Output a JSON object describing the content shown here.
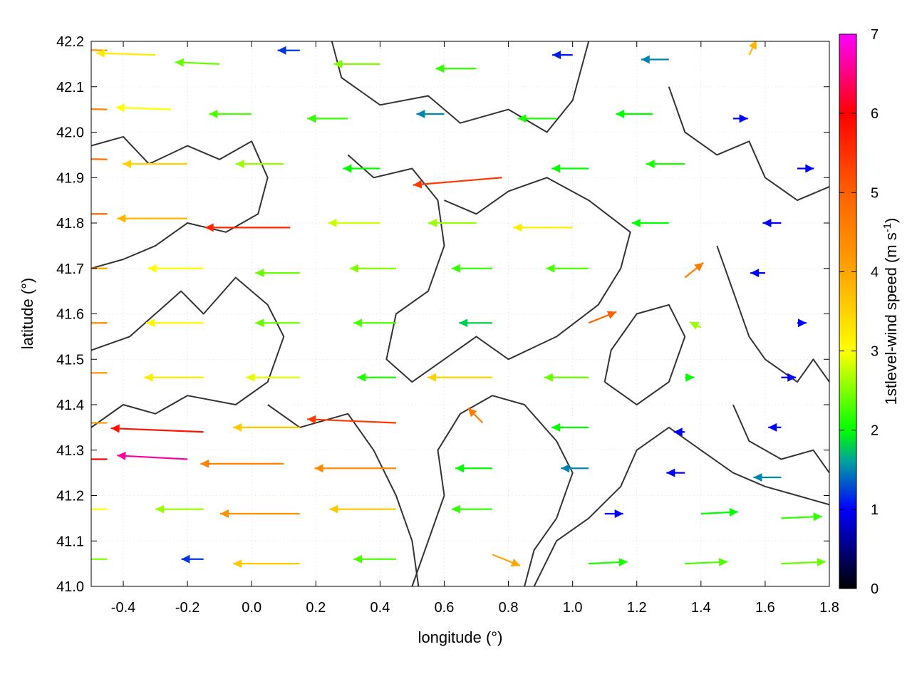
{
  "chart_data": {
    "type": "vector-field",
    "xlabel": "longitude (°)",
    "ylabel": "latitude (°)",
    "xlim": [
      -0.5,
      1.8
    ],
    "ylim": [
      41.0,
      42.2
    ],
    "xticks": [
      -0.4,
      -0.2,
      0.0,
      0.2,
      0.4,
      0.6,
      0.8,
      1.0,
      1.2,
      1.4,
      1.6,
      1.8
    ],
    "xtick_labels": [
      "-0.4",
      "-0.2",
      "0.0",
      "0.2",
      "0.4",
      "0.6",
      "0.8",
      "1.0",
      "1.2",
      "1.4",
      "1.6",
      "1.8"
    ],
    "yticks": [
      41.0,
      41.1,
      41.2,
      41.3,
      41.4,
      41.5,
      41.6,
      41.7,
      41.8,
      41.9,
      42.0,
      42.1,
      42.2
    ],
    "ytick_labels": [
      "41.0",
      "41.1",
      "41.2",
      "41.3",
      "41.4",
      "41.5",
      "41.6",
      "41.7",
      "41.8",
      "41.9",
      "42.0",
      "42.1",
      "42.2"
    ],
    "grid": true,
    "colorbar": {
      "label": "1stlevel-wind speed (m s",
      "label_superscript": "-1",
      "label_suffix": ")",
      "range": [
        0,
        7
      ],
      "ticks": [
        0,
        1,
        2,
        3,
        4,
        5,
        6,
        7
      ],
      "tick_labels": [
        "0",
        "1",
        "2",
        "3",
        "4",
        "5",
        "6",
        "7"
      ],
      "colors": [
        {
          "value": 0,
          "color": "#000000"
        },
        {
          "value": 1,
          "color": "#0000ff"
        },
        {
          "value": 1.6,
          "color": "#00a0a0"
        },
        {
          "value": 2,
          "color": "#00ff00"
        },
        {
          "value": 3,
          "color": "#ffff00"
        },
        {
          "value": 4,
          "color": "#ffa500"
        },
        {
          "value": 5,
          "color": "#ff6000"
        },
        {
          "value": 6,
          "color": "#ff0000"
        },
        {
          "value": 7,
          "color": "#ff00ff"
        }
      ]
    },
    "vectors": [
      {
        "lon": -0.45,
        "lat": 42.18,
        "u": -4.2,
        "v": 0.1,
        "speed": 4.2
      },
      {
        "lon": -0.3,
        "lat": 42.17,
        "u": -3.2,
        "v": 0.1,
        "speed": 3.2
      },
      {
        "lon": -0.1,
        "lat": 42.15,
        "u": -2.4,
        "v": 0.1,
        "speed": 2.4
      },
      {
        "lon": 0.15,
        "lat": 42.18,
        "u": -1.2,
        "v": 0.0,
        "speed": 1.2
      },
      {
        "lon": 0.4,
        "lat": 42.15,
        "u": -2.5,
        "v": 0.0,
        "speed": 2.5
      },
      {
        "lon": 0.7,
        "lat": 42.14,
        "u": -2.2,
        "v": 0.0,
        "speed": 2.2
      },
      {
        "lon": 1.0,
        "lat": 42.17,
        "u": -1.1,
        "v": 0.0,
        "speed": 1.1
      },
      {
        "lon": 1.3,
        "lat": 42.16,
        "u": -1.5,
        "v": 0.0,
        "speed": 1.5
      },
      {
        "lon": 1.55,
        "lat": 42.17,
        "u": 0.4,
        "v": 0.8,
        "speed": 3.8
      },
      {
        "lon": -0.45,
        "lat": 42.05,
        "u": -4.5,
        "v": 0.1,
        "speed": 4.5
      },
      {
        "lon": -0.25,
        "lat": 42.05,
        "u": -3.0,
        "v": 0.1,
        "speed": 3.0
      },
      {
        "lon": 0.0,
        "lat": 42.04,
        "u": -2.3,
        "v": 0.0,
        "speed": 2.3
      },
      {
        "lon": 0.3,
        "lat": 42.03,
        "u": -2.2,
        "v": 0.0,
        "speed": 2.2
      },
      {
        "lon": 0.6,
        "lat": 42.04,
        "u": -1.5,
        "v": 0.0,
        "speed": 1.5
      },
      {
        "lon": 0.95,
        "lat": 42.03,
        "u": -2.1,
        "v": 0.0,
        "speed": 2.1
      },
      {
        "lon": 1.25,
        "lat": 42.04,
        "u": -2.0,
        "v": 0.0,
        "speed": 2.0
      },
      {
        "lon": 1.5,
        "lat": 42.03,
        "u": 0.8,
        "v": 0.0,
        "speed": 1.0
      },
      {
        "lon": -0.45,
        "lat": 41.94,
        "u": -4.8,
        "v": 0.1,
        "speed": 4.8
      },
      {
        "lon": -0.2,
        "lat": 41.93,
        "u": -3.5,
        "v": 0.0,
        "speed": 3.5
      },
      {
        "lon": 0.1,
        "lat": 41.93,
        "u": -2.6,
        "v": 0.0,
        "speed": 2.6
      },
      {
        "lon": 0.4,
        "lat": 41.92,
        "u": -2.0,
        "v": 0.0,
        "speed": 2.0
      },
      {
        "lon": 0.78,
        "lat": 41.9,
        "u": -4.8,
        "v": -0.4,
        "speed": 5.4
      },
      {
        "lon": 1.05,
        "lat": 41.92,
        "u": -2.0,
        "v": 0.0,
        "speed": 2.0
      },
      {
        "lon": 1.35,
        "lat": 41.93,
        "u": -2.1,
        "v": 0.0,
        "speed": 2.1
      },
      {
        "lon": 1.7,
        "lat": 41.92,
        "u": 0.9,
        "v": 0.0,
        "speed": 1.0
      },
      {
        "lon": -0.45,
        "lat": 41.82,
        "u": -4.9,
        "v": 0.0,
        "speed": 4.9
      },
      {
        "lon": -0.2,
        "lat": 41.81,
        "u": -3.8,
        "v": 0.0,
        "speed": 3.8
      },
      {
        "lon": 0.12,
        "lat": 41.79,
        "u": -4.6,
        "v": 0.0,
        "speed": 5.6
      },
      {
        "lon": 0.4,
        "lat": 41.8,
        "u": -2.8,
        "v": 0.0,
        "speed": 2.8
      },
      {
        "lon": 0.7,
        "lat": 41.8,
        "u": -2.6,
        "v": 0.0,
        "speed": 2.6
      },
      {
        "lon": 1.0,
        "lat": 41.79,
        "u": -3.2,
        "v": 0.0,
        "speed": 3.2
      },
      {
        "lon": 1.3,
        "lat": 41.8,
        "u": -2.0,
        "v": 0.0,
        "speed": 2.0
      },
      {
        "lon": 1.65,
        "lat": 41.8,
        "u": -1.0,
        "v": 0.0,
        "speed": 1.0
      },
      {
        "lon": -0.45,
        "lat": 41.7,
        "u": -4.0,
        "v": 0.0,
        "speed": 4.0
      },
      {
        "lon": -0.15,
        "lat": 41.7,
        "u": -3.0,
        "v": 0.0,
        "speed": 3.0
      },
      {
        "lon": 0.15,
        "lat": 41.69,
        "u": -2.4,
        "v": 0.0,
        "speed": 2.4
      },
      {
        "lon": 0.45,
        "lat": 41.7,
        "u": -2.5,
        "v": 0.0,
        "speed": 2.5
      },
      {
        "lon": 0.75,
        "lat": 41.7,
        "u": -2.2,
        "v": 0.0,
        "speed": 2.2
      },
      {
        "lon": 1.05,
        "lat": 41.7,
        "u": -2.3,
        "v": 0.0,
        "speed": 2.3
      },
      {
        "lon": 1.35,
        "lat": 41.68,
        "u": 1.0,
        "v": 0.8,
        "speed": 4.6
      },
      {
        "lon": 1.6,
        "lat": 41.69,
        "u": -0.8,
        "v": 0.0,
        "speed": 1.0
      },
      {
        "lon": -0.45,
        "lat": 41.58,
        "u": -4.4,
        "v": 0.0,
        "speed": 4.4
      },
      {
        "lon": -0.15,
        "lat": 41.58,
        "u": -3.1,
        "v": 0.0,
        "speed": 3.1
      },
      {
        "lon": 0.15,
        "lat": 41.58,
        "u": -2.4,
        "v": 0.0,
        "speed": 2.4
      },
      {
        "lon": 0.45,
        "lat": 41.58,
        "u": -2.3,
        "v": 0.0,
        "speed": 2.3
      },
      {
        "lon": 0.75,
        "lat": 41.58,
        "u": -1.8,
        "v": 0.0,
        "speed": 1.8
      },
      {
        "lon": 1.05,
        "lat": 41.58,
        "u": 1.5,
        "v": 0.6,
        "speed": 5.0
      },
      {
        "lon": 1.4,
        "lat": 41.57,
        "u": -0.6,
        "v": 0.3,
        "speed": 2.6
      },
      {
        "lon": 1.7,
        "lat": 41.58,
        "u": 0.5,
        "v": 0.0,
        "speed": 1.0
      },
      {
        "lon": -0.45,
        "lat": 41.47,
        "u": -4.2,
        "v": 0.0,
        "speed": 4.2
      },
      {
        "lon": -0.15,
        "lat": 41.46,
        "u": -3.2,
        "v": 0.0,
        "speed": 3.2
      },
      {
        "lon": 0.15,
        "lat": 41.46,
        "u": -2.9,
        "v": 0.0,
        "speed": 2.9
      },
      {
        "lon": 0.45,
        "lat": 41.46,
        "u": -2.1,
        "v": 0.0,
        "speed": 2.1
      },
      {
        "lon": 0.75,
        "lat": 41.46,
        "u": -3.5,
        "v": 0.0,
        "speed": 3.5
      },
      {
        "lon": 1.05,
        "lat": 41.46,
        "u": -2.4,
        "v": 0.0,
        "speed": 2.4
      },
      {
        "lon": 1.35,
        "lat": 41.46,
        "u": 0.5,
        "v": 0.0,
        "speed": 2.0
      },
      {
        "lon": 1.65,
        "lat": 41.46,
        "u": 0.8,
        "v": 0.0,
        "speed": 1.0
      },
      {
        "lon": -0.45,
        "lat": 41.36,
        "u": -4.1,
        "v": 0.0,
        "speed": 4.1
      },
      {
        "lon": -0.15,
        "lat": 41.34,
        "u": -5.0,
        "v": 0.2,
        "speed": 5.8
      },
      {
        "lon": 0.15,
        "lat": 41.35,
        "u": -3.6,
        "v": 0.0,
        "speed": 3.6
      },
      {
        "lon": 0.45,
        "lat": 41.36,
        "u": -4.8,
        "v": 0.2,
        "speed": 5.4
      },
      {
        "lon": 0.72,
        "lat": 41.36,
        "u": -0.8,
        "v": 0.8,
        "speed": 4.6
      },
      {
        "lon": 1.05,
        "lat": 41.35,
        "u": -2.0,
        "v": 0.0,
        "speed": 2.0
      },
      {
        "lon": 1.35,
        "lat": 41.34,
        "u": -0.6,
        "v": 0.0,
        "speed": 1.0
      },
      {
        "lon": 1.65,
        "lat": 41.35,
        "u": -0.7,
        "v": 0.0,
        "speed": 1.0
      },
      {
        "lon": -0.45,
        "lat": 41.28,
        "u": -4.8,
        "v": 0.0,
        "speed": 6.0
      },
      {
        "lon": -0.2,
        "lat": 41.28,
        "u": -3.8,
        "v": 0.2,
        "speed": 6.6
      },
      {
        "lon": 0.1,
        "lat": 41.27,
        "u": -4.5,
        "v": 0.0,
        "speed": 4.5
      },
      {
        "lon": 0.45,
        "lat": 41.26,
        "u": -4.4,
        "v": 0.0,
        "speed": 4.4
      },
      {
        "lon": 0.75,
        "lat": 41.26,
        "u": -2.0,
        "v": 0.0,
        "speed": 2.0
      },
      {
        "lon": 1.05,
        "lat": 41.26,
        "u": -1.5,
        "v": 0.0,
        "speed": 1.5
      },
      {
        "lon": 1.35,
        "lat": 41.25,
        "u": -1.0,
        "v": 0.0,
        "speed": 1.0
      },
      {
        "lon": 1.65,
        "lat": 41.24,
        "u": -1.5,
        "v": 0.0,
        "speed": 1.5
      },
      {
        "lon": -0.45,
        "lat": 41.17,
        "u": -3.0,
        "v": 0.0,
        "speed": 3.0
      },
      {
        "lon": -0.15,
        "lat": 41.17,
        "u": -2.6,
        "v": 0.0,
        "speed": 2.6
      },
      {
        "lon": 0.15,
        "lat": 41.16,
        "u": -4.3,
        "v": 0.0,
        "speed": 4.3
      },
      {
        "lon": 0.45,
        "lat": 41.17,
        "u": -3.6,
        "v": 0.0,
        "speed": 3.6
      },
      {
        "lon": 0.75,
        "lat": 41.17,
        "u": -2.2,
        "v": 0.0,
        "speed": 2.2
      },
      {
        "lon": 1.1,
        "lat": 41.16,
        "u": 1.0,
        "v": 0.0,
        "speed": 1.0
      },
      {
        "lon": 1.4,
        "lat": 41.16,
        "u": 2.0,
        "v": 0.1,
        "speed": 2.0
      },
      {
        "lon": 1.65,
        "lat": 41.15,
        "u": 2.2,
        "v": 0.1,
        "speed": 2.2
      },
      {
        "lon": -0.45,
        "lat": 41.06,
        "u": -2.5,
        "v": 0.0,
        "speed": 2.5
      },
      {
        "lon": -0.15,
        "lat": 41.06,
        "u": -1.2,
        "v": 0.0,
        "speed": 1.2
      },
      {
        "lon": 0.15,
        "lat": 41.05,
        "u": -3.6,
        "v": 0.0,
        "speed": 3.6
      },
      {
        "lon": 0.45,
        "lat": 41.06,
        "u": -2.3,
        "v": 0.0,
        "speed": 2.3
      },
      {
        "lon": 0.75,
        "lat": 41.07,
        "u": 1.5,
        "v": -0.6,
        "speed": 4.0
      },
      {
        "lon": 1.05,
        "lat": 41.05,
        "u": 2.1,
        "v": 0.1,
        "speed": 2.1
      },
      {
        "lon": 1.35,
        "lat": 41.05,
        "u": 2.3,
        "v": 0.1,
        "speed": 2.3
      },
      {
        "lon": 1.65,
        "lat": 41.05,
        "u": 2.4,
        "v": 0.1,
        "speed": 2.4
      }
    ],
    "contours": [
      [
        [
          -0.5,
          41.97
        ],
        [
          -0.4,
          41.99
        ],
        [
          -0.32,
          41.93
        ],
        [
          -0.2,
          41.97
        ],
        [
          -0.1,
          41.94
        ],
        [
          0.0,
          41.98
        ],
        [
          0.05,
          41.9
        ],
        [
          0.02,
          41.82
        ],
        [
          -0.08,
          41.78
        ],
        [
          -0.2,
          41.8
        ],
        [
          -0.3,
          41.75
        ],
        [
          -0.4,
          41.72
        ],
        [
          -0.5,
          41.7
        ]
      ],
      [
        [
          -0.5,
          41.52
        ],
        [
          -0.38,
          41.55
        ],
        [
          -0.3,
          41.6
        ],
        [
          -0.22,
          41.65
        ],
        [
          -0.15,
          41.6
        ],
        [
          -0.05,
          41.68
        ],
        [
          0.05,
          41.62
        ],
        [
          0.1,
          41.55
        ],
        [
          0.05,
          41.45
        ],
        [
          -0.05,
          41.4
        ],
        [
          -0.2,
          41.42
        ],
        [
          -0.3,
          41.38
        ],
        [
          -0.4,
          41.4
        ],
        [
          -0.5,
          41.35
        ]
      ],
      [
        [
          0.25,
          42.2
        ],
        [
          0.28,
          42.12
        ],
        [
          0.4,
          42.06
        ],
        [
          0.55,
          42.08
        ],
        [
          0.65,
          42.02
        ],
        [
          0.8,
          42.05
        ],
        [
          0.92,
          42.0
        ],
        [
          1.0,
          42.07
        ],
        [
          1.05,
          42.2
        ]
      ],
      [
        [
          0.3,
          41.95
        ],
        [
          0.38,
          41.9
        ],
        [
          0.5,
          41.92
        ],
        [
          0.58,
          41.85
        ],
        [
          0.6,
          41.75
        ],
        [
          0.55,
          41.65
        ],
        [
          0.45,
          41.6
        ],
        [
          0.42,
          41.5
        ],
        [
          0.5,
          41.45
        ],
        [
          0.6,
          41.5
        ],
        [
          0.7,
          41.55
        ],
        [
          0.8,
          41.5
        ],
        [
          0.95,
          41.55
        ],
        [
          1.08,
          41.62
        ],
        [
          1.15,
          41.7
        ],
        [
          1.18,
          41.78
        ],
        [
          1.05,
          41.85
        ],
        [
          0.92,
          41.9
        ],
        [
          0.8,
          41.87
        ],
        [
          0.7,
          41.82
        ],
        [
          0.6,
          41.85
        ]
      ],
      [
        [
          0.05,
          41.4
        ],
        [
          0.15,
          41.35
        ],
        [
          0.3,
          41.38
        ],
        [
          0.38,
          41.3
        ],
        [
          0.45,
          41.2
        ],
        [
          0.5,
          41.1
        ],
        [
          0.52,
          41.0
        ]
      ],
      [
        [
          0.5,
          41.0
        ],
        [
          0.55,
          41.1
        ],
        [
          0.6,
          41.2
        ],
        [
          0.58,
          41.3
        ],
        [
          0.65,
          41.38
        ],
        [
          0.75,
          41.42
        ],
        [
          0.85,
          41.4
        ],
        [
          0.95,
          41.32
        ],
        [
          1.0,
          41.25
        ],
        [
          0.95,
          41.15
        ],
        [
          0.88,
          41.08
        ],
        [
          0.85,
          41.0
        ]
      ],
      [
        [
          0.88,
          41.0
        ],
        [
          0.95,
          41.1
        ],
        [
          1.05,
          41.15
        ],
        [
          1.15,
          41.22
        ],
        [
          1.2,
          41.3
        ],
        [
          1.3,
          41.35
        ],
        [
          1.4,
          41.3
        ],
        [
          1.5,
          41.25
        ],
        [
          1.6,
          41.22
        ],
        [
          1.7,
          41.2
        ],
        [
          1.8,
          41.18
        ]
      ],
      [
        [
          1.3,
          42.1
        ],
        [
          1.35,
          42.0
        ],
        [
          1.45,
          41.95
        ],
        [
          1.55,
          41.98
        ],
        [
          1.6,
          41.9
        ],
        [
          1.7,
          41.85
        ],
        [
          1.8,
          41.88
        ]
      ],
      [
        [
          1.45,
          41.75
        ],
        [
          1.5,
          41.65
        ],
        [
          1.55,
          41.55
        ],
        [
          1.6,
          41.5
        ],
        [
          1.7,
          41.45
        ],
        [
          1.75,
          41.5
        ],
        [
          1.8,
          41.45
        ]
      ],
      [
        [
          1.1,
          41.45
        ],
        [
          1.2,
          41.4
        ],
        [
          1.3,
          41.45
        ],
        [
          1.35,
          41.55
        ],
        [
          1.3,
          41.62
        ],
        [
          1.2,
          41.6
        ],
        [
          1.12,
          41.52
        ],
        [
          1.1,
          41.45
        ]
      ],
      [
        [
          1.5,
          41.4
        ],
        [
          1.55,
          41.32
        ],
        [
          1.65,
          41.28
        ],
        [
          1.75,
          41.3
        ],
        [
          1.8,
          41.25
        ]
      ]
    ]
  }
}
